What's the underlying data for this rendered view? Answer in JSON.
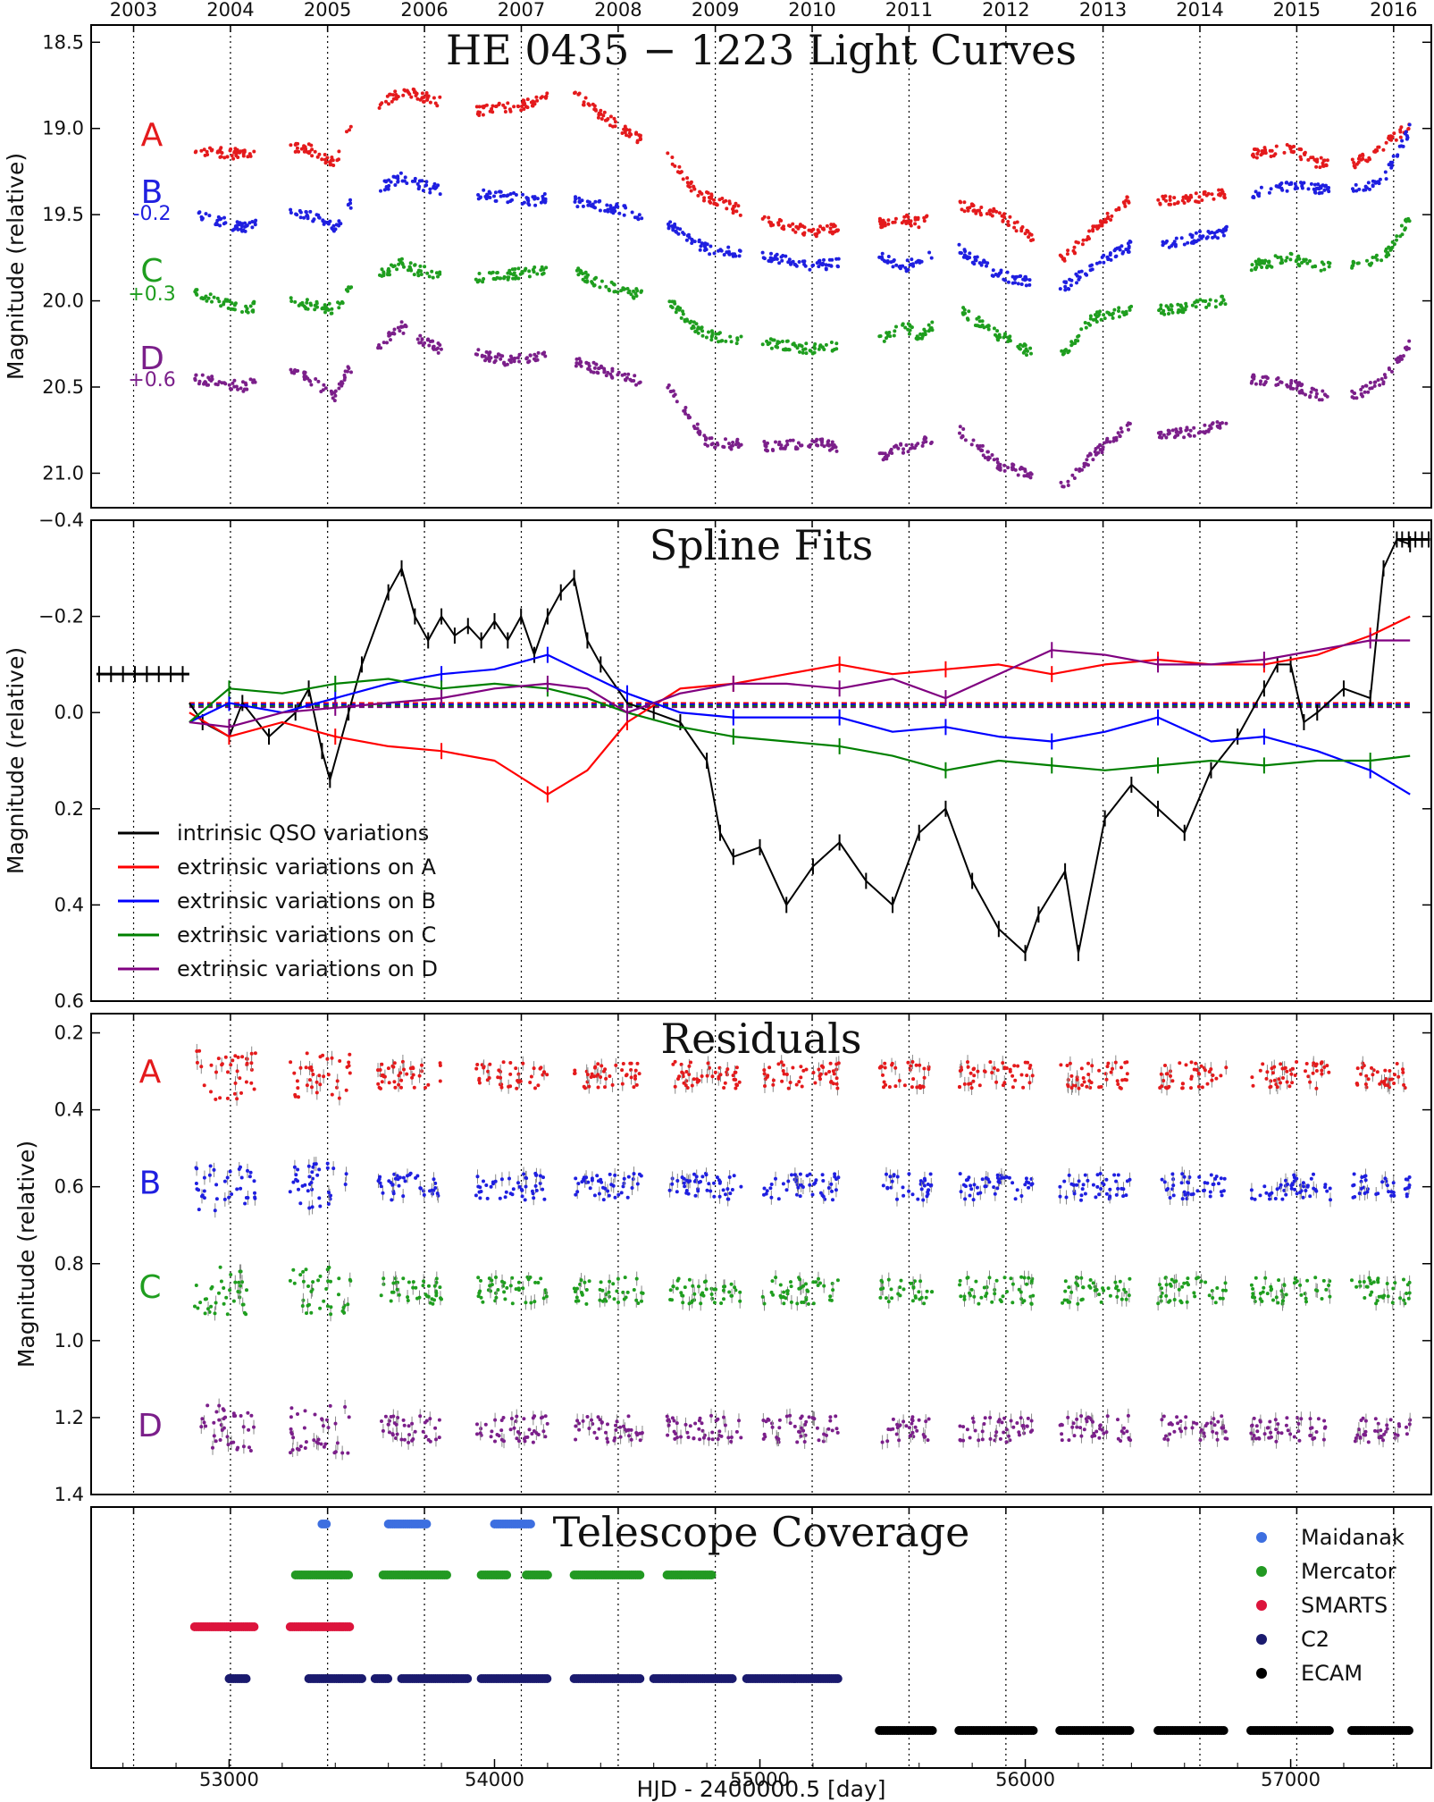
{
  "chart_data": [
    {
      "type": "scatter",
      "title": "HE 0435 − 1223 Light Curves",
      "ylabel": "Magnitude (relative)",
      "ylim": [
        21.2,
        18.4
      ],
      "yticks": [
        "18.5",
        "19.0",
        "19.5",
        "20.0",
        "20.5",
        "21.0"
      ],
      "top_year_labels": [
        "2003",
        "2004",
        "2005",
        "2006",
        "2007",
        "2008",
        "2009",
        "2010",
        "2011",
        "2012",
        "2013",
        "2014",
        "2015",
        "2016"
      ],
      "series": [
        {
          "name": "A",
          "offset_label": "",
          "color": "#e41a1c",
          "x": [
            52880,
            53050,
            53200,
            53300,
            53400,
            53450,
            53650,
            53700,
            53800,
            53900,
            54050,
            54150,
            54250,
            54300,
            54400,
            54500,
            54650,
            54750,
            54800,
            55050,
            55200,
            55450,
            55550,
            55600,
            55750,
            55900,
            56050,
            56150,
            56250,
            56400,
            56550,
            56750,
            56850,
            57000,
            57100,
            57250,
            57350,
            57450
          ],
          "y": [
            19.13,
            19.15,
            19.1,
            19.12,
            19.2,
            19.0,
            18.78,
            18.8,
            18.85,
            18.9,
            18.88,
            18.85,
            18.75,
            18.8,
            18.92,
            19.02,
            19.15,
            19.35,
            19.4,
            19.55,
            19.6,
            19.55,
            19.53,
            19.55,
            19.45,
            19.5,
            19.65,
            19.75,
            19.6,
            19.4,
            19.42,
            19.38,
            19.15,
            19.12,
            19.2,
            19.2,
            19.1,
            18.98
          ]
        },
        {
          "name": "B",
          "offset_label": "-0.2",
          "color": "#1f1fe0",
          "x": [
            52880,
            53050,
            53200,
            53300,
            53400,
            53450,
            53650,
            53700,
            53800,
            53900,
            54050,
            54150,
            54250,
            54300,
            54400,
            54500,
            54650,
            54750,
            54800,
            55050,
            55200,
            55450,
            55550,
            55600,
            55750,
            55900,
            56050,
            56150,
            56250,
            56400,
            56550,
            56750,
            56850,
            57000,
            57100,
            57250,
            57350,
            57450
          ],
          "y": [
            19.5,
            19.58,
            19.5,
            19.5,
            19.58,
            19.45,
            19.28,
            19.32,
            19.36,
            19.38,
            19.4,
            19.42,
            19.38,
            19.42,
            19.45,
            19.48,
            19.55,
            19.65,
            19.7,
            19.75,
            19.8,
            19.75,
            19.8,
            19.75,
            19.7,
            19.85,
            19.9,
            19.92,
            19.8,
            19.68,
            19.66,
            19.6,
            19.38,
            19.33,
            19.35,
            19.35,
            19.3,
            19.0
          ]
        },
        {
          "name": "C",
          "offset_label": "+0.3",
          "color": "#1f9e1f",
          "x": [
            52880,
            53050,
            53200,
            53300,
            53400,
            53450,
            53650,
            53700,
            53800,
            53900,
            54050,
            54150,
            54250,
            54300,
            54400,
            54500,
            54650,
            54750,
            54800,
            55050,
            55200,
            55450,
            55550,
            55600,
            55750,
            55900,
            56050,
            56150,
            56250,
            56400,
            56550,
            56750,
            56850,
            57000,
            57100,
            57250,
            57350,
            57450
          ],
          "y": [
            19.95,
            20.05,
            20.0,
            20.02,
            20.05,
            19.95,
            19.78,
            19.82,
            19.85,
            19.87,
            19.85,
            19.83,
            19.8,
            19.83,
            19.9,
            19.95,
            19.98,
            20.15,
            20.2,
            20.25,
            20.28,
            20.22,
            20.15,
            20.2,
            20.05,
            20.2,
            20.32,
            20.3,
            20.1,
            20.05,
            20.05,
            20.0,
            19.8,
            19.75,
            19.8,
            19.8,
            19.75,
            19.52
          ]
        },
        {
          "name": "D",
          "offset_label": "+0.6",
          "color": "#7b1f8a",
          "x": [
            52880,
            53050,
            53200,
            53300,
            53400,
            53450,
            53650,
            53700,
            53800,
            53900,
            54050,
            54150,
            54250,
            54300,
            54400,
            54500,
            54650,
            54750,
            54800,
            55050,
            55200,
            55450,
            55550,
            55600,
            55750,
            55900,
            56050,
            56150,
            56250,
            56400,
            56550,
            56750,
            56850,
            57000,
            57100,
            57250,
            57350,
            57450
          ],
          "y": [
            20.45,
            20.5,
            20.4,
            20.45,
            20.55,
            20.4,
            20.15,
            20.22,
            20.28,
            20.3,
            20.35,
            20.33,
            20.3,
            20.35,
            20.4,
            20.45,
            20.5,
            20.7,
            20.82,
            20.85,
            20.82,
            20.9,
            20.85,
            20.82,
            20.75,
            20.95,
            21.02,
            21.08,
            20.9,
            20.72,
            20.78,
            20.72,
            20.45,
            20.48,
            20.55,
            20.55,
            20.45,
            20.25
          ]
        }
      ]
    },
    {
      "type": "line",
      "title": "Spline Fits",
      "ylabel": "Magnitude (relative)",
      "ylim": [
        0.6,
        -0.4
      ],
      "yticks": [
        "−0.4",
        "−0.2",
        "0.0",
        "0.2",
        "0.4",
        "0.6"
      ],
      "legend_position": "lower-left",
      "series": [
        {
          "name": "intrinsic QSO variations",
          "color": "#000000",
          "x": [
            52850,
            52900,
            53000,
            53050,
            53150,
            53250,
            53300,
            53350,
            53380,
            53450,
            53500,
            53600,
            53650,
            53700,
            53750,
            53800,
            53850,
            53900,
            53950,
            54000,
            54050,
            54100,
            54150,
            54200,
            54250,
            54300,
            54350,
            54400,
            54500,
            54600,
            54700,
            54800,
            54850,
            54900,
            55000,
            55100,
            55200,
            55300,
            55400,
            55500,
            55600,
            55700,
            55800,
            55900,
            56000,
            56050,
            56150,
            56200,
            56300,
            56400,
            56500,
            56600,
            56700,
            56800,
            56900,
            56950,
            57000,
            57050,
            57100,
            57200,
            57300,
            57350,
            57400,
            57450
          ],
          "y": [
            -0.02,
            0.02,
            0.05,
            -0.02,
            0.05,
            0.0,
            -0.05,
            0.08,
            0.14,
            0.0,
            -0.1,
            -0.25,
            -0.3,
            -0.2,
            -0.15,
            -0.2,
            -0.16,
            -0.18,
            -0.15,
            -0.19,
            -0.15,
            -0.2,
            -0.12,
            -0.2,
            -0.25,
            -0.28,
            -0.15,
            -0.1,
            -0.02,
            0.0,
            0.02,
            0.1,
            0.25,
            0.3,
            0.28,
            0.4,
            0.32,
            0.27,
            0.35,
            0.4,
            0.25,
            0.2,
            0.35,
            0.45,
            0.5,
            0.42,
            0.33,
            0.5,
            0.22,
            0.15,
            0.2,
            0.25,
            0.12,
            0.05,
            -0.05,
            -0.1,
            -0.1,
            0.02,
            0.0,
            -0.05,
            -0.03,
            -0.3,
            -0.36,
            -0.35
          ]
        },
        {
          "name": "extrinsic variations on A",
          "color": "#ff0000",
          "x": [
            52850,
            53000,
            53200,
            53400,
            53600,
            53800,
            54000,
            54200,
            54350,
            54500,
            54700,
            54900,
            55100,
            55300,
            55500,
            55700,
            55900,
            56100,
            56300,
            56500,
            56700,
            56900,
            57100,
            57300,
            57450
          ],
          "y": [
            0.0,
            0.05,
            0.02,
            0.05,
            0.07,
            0.08,
            0.1,
            0.17,
            0.12,
            0.02,
            -0.05,
            -0.06,
            -0.08,
            -0.1,
            -0.08,
            -0.09,
            -0.1,
            -0.08,
            -0.1,
            -0.11,
            -0.1,
            -0.1,
            -0.12,
            -0.16,
            -0.2
          ]
        },
        {
          "name": "extrinsic variations on B",
          "color": "#0000ff",
          "x": [
            52850,
            53000,
            53200,
            53400,
            53600,
            53800,
            54000,
            54200,
            54350,
            54500,
            54700,
            54900,
            55100,
            55300,
            55500,
            55700,
            55900,
            56100,
            56300,
            56500,
            56700,
            56900,
            57100,
            57300,
            57450
          ],
          "y": [
            0.02,
            -0.02,
            0.0,
            -0.03,
            -0.06,
            -0.08,
            -0.09,
            -0.12,
            -0.08,
            -0.04,
            0.0,
            0.01,
            0.01,
            0.01,
            0.04,
            0.03,
            0.05,
            0.06,
            0.04,
            0.01,
            0.06,
            0.05,
            0.08,
            0.12,
            0.17
          ]
        },
        {
          "name": "extrinsic variations on C",
          "color": "#008000",
          "x": [
            52850,
            53000,
            53200,
            53400,
            53600,
            53800,
            54000,
            54200,
            54350,
            54500,
            54700,
            54900,
            55100,
            55300,
            55500,
            55700,
            55900,
            56100,
            56300,
            56500,
            56700,
            56900,
            57100,
            57300,
            57450
          ],
          "y": [
            0.02,
            -0.05,
            -0.04,
            -0.06,
            -0.07,
            -0.05,
            -0.06,
            -0.05,
            -0.03,
            0.0,
            0.03,
            0.05,
            0.06,
            0.07,
            0.09,
            0.12,
            0.1,
            0.11,
            0.12,
            0.11,
            0.1,
            0.11,
            0.1,
            0.1,
            0.09
          ]
        },
        {
          "name": "extrinsic variations on D",
          "color": "#800080",
          "x": [
            52850,
            53000,
            53200,
            53400,
            53600,
            53800,
            54000,
            54200,
            54350,
            54500,
            54700,
            54900,
            55100,
            55300,
            55500,
            55700,
            55900,
            56100,
            56300,
            56500,
            56700,
            56900,
            57100,
            57300,
            57450
          ],
          "y": [
            0.02,
            0.03,
            0.0,
            -0.01,
            -0.02,
            -0.03,
            -0.05,
            -0.06,
            -0.05,
            0.0,
            -0.04,
            -0.06,
            -0.06,
            -0.05,
            -0.07,
            -0.03,
            -0.08,
            -0.13,
            -0.12,
            -0.1,
            -0.1,
            -0.11,
            -0.13,
            -0.15,
            -0.15
          ]
        }
      ]
    },
    {
      "type": "scatter",
      "title": "Residuals",
      "ylabel": "Magnitude (relative)",
      "ylim": [
        1.4,
        0.15
      ],
      "yticks": [
        "0.2",
        "0.4",
        "0.6",
        "0.8",
        "1.0",
        "1.2",
        "1.4"
      ],
      "series": [
        {
          "name": "A",
          "color": "#e41a1c",
          "level": 0.31
        },
        {
          "name": "B",
          "color": "#1f1fe0",
          "level": 0.6
        },
        {
          "name": "C",
          "color": "#1f9e1f",
          "level": 0.87
        },
        {
          "name": "D",
          "color": "#7b1f8a",
          "level": 1.23
        }
      ]
    },
    {
      "type": "scatter",
      "title": "Telescope Coverage",
      "legend_position": "top-right",
      "series": [
        {
          "name": "Maidanak",
          "color": "#3d6fe0",
          "ranges": [
            [
              53350,
              53370
            ],
            [
              53600,
              53750
            ],
            [
              54000,
              54140
            ]
          ]
        },
        {
          "name": "Mercator",
          "color": "#229922",
          "ranges": [
            [
              53250,
              53450
            ],
            [
              53580,
              53820
            ],
            [
              53950,
              54050
            ],
            [
              54120,
              54200
            ],
            [
              54300,
              54550
            ],
            [
              54650,
              54820
            ]
          ]
        },
        {
          "name": "SMARTS",
          "color": "#dc143c",
          "ranges": [
            [
              52870,
              53100
            ],
            [
              53230,
              53460
            ]
          ]
        },
        {
          "name": "C2",
          "color": "#1a1a6e",
          "ranges": [
            [
              53000,
              53070
            ],
            [
              53300,
              53500
            ],
            [
              53550,
              53600
            ],
            [
              53650,
              53900
            ],
            [
              53950,
              54200
            ],
            [
              54300,
              54550
            ],
            [
              54600,
              54900
            ],
            [
              54950,
              55300
            ]
          ]
        },
        {
          "name": "ECAM",
          "color": "#000000",
          "ranges": [
            [
              55450,
              55650
            ],
            [
              55750,
              56030
            ],
            [
              56130,
              56400
            ],
            [
              56500,
              56750
            ],
            [
              56850,
              57150
            ],
            [
              57230,
              57450
            ]
          ]
        }
      ]
    }
  ],
  "x_axis": {
    "label": "HJD - 2400000.5 [day]",
    "xlim": [
      52480,
      57530
    ],
    "ticks": [
      "53000",
      "54000",
      "55000",
      "56000",
      "57000"
    ]
  },
  "year_boundaries_mjd": [
    52640,
    53005,
    53371,
    53736,
    54101,
    54466,
    54832,
    55197,
    55562,
    55927,
    56293,
    56658,
    57023,
    57388
  ]
}
